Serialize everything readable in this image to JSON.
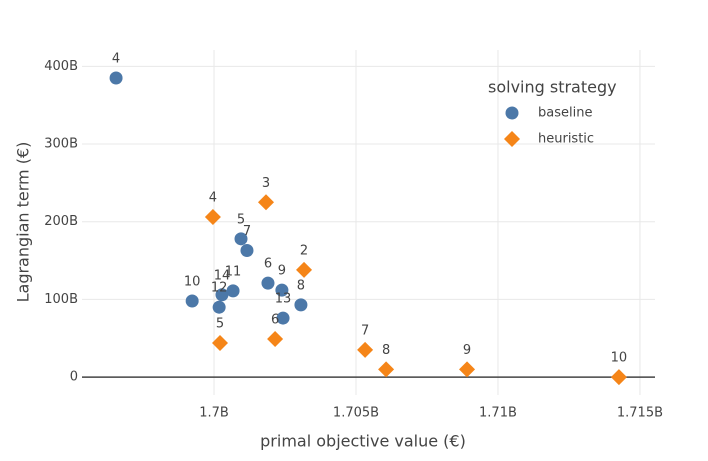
{
  "chart_data": {
    "type": "scatter",
    "x_label": "primal objective value (€)",
    "y_label": "Lagrangian term (€)",
    "legend_title": "solving strategy",
    "legend_position": "top-right",
    "grid": true,
    "xlim": [
      1695350000,
      1715530000
    ],
    "ylim": [
      -23000000000,
      421000000000
    ],
    "xticks": [
      {
        "value": 1700000000,
        "label": "1.7B"
      },
      {
        "value": 1705000000,
        "label": "1.705B"
      },
      {
        "value": 1710000000,
        "label": "1.71B"
      },
      {
        "value": 1715000000,
        "label": "1.715B"
      }
    ],
    "yticks": [
      {
        "value": 0,
        "label": "0"
      },
      {
        "value": 100000000000,
        "label": "100B"
      },
      {
        "value": 200000000000,
        "label": "200B"
      },
      {
        "value": 300000000000,
        "label": "300B"
      },
      {
        "value": 400000000000,
        "label": "400B"
      }
    ],
    "series": [
      {
        "name": "baseline",
        "color": "#4c78a8",
        "marker": "circle",
        "labels": [
          "4",
          "10",
          "14",
          "12",
          "11",
          "5",
          "7",
          "6",
          "9",
          "13",
          "8"
        ],
        "x": [
          1696550000,
          1699230000,
          1700280000,
          1700180000,
          1700670000,
          1700950000,
          1701160000,
          1701900000,
          1702390000,
          1702430000,
          1703060000
        ],
        "values": [
          385000000000,
          98000000000,
          106000000000,
          90000000000,
          111000000000,
          178000000000,
          163000000000,
          121000000000,
          112000000000,
          76000000000,
          93000000000
        ]
      },
      {
        "name": "heuristic",
        "color": "#f58518",
        "marker": "diamond",
        "labels": [
          "4",
          "3",
          "2",
          "5",
          "6",
          "7",
          "8",
          "9",
          "10"
        ],
        "x": [
          1699960000,
          1701830000,
          1703170000,
          1700210000,
          1702150000,
          1705320000,
          1706060000,
          1708910000,
          1714260000
        ],
        "values": [
          206000000000,
          225000000000,
          138000000000,
          44000000000,
          49000000000,
          35000000000,
          10000000000,
          10000000000,
          0
        ]
      }
    ]
  }
}
